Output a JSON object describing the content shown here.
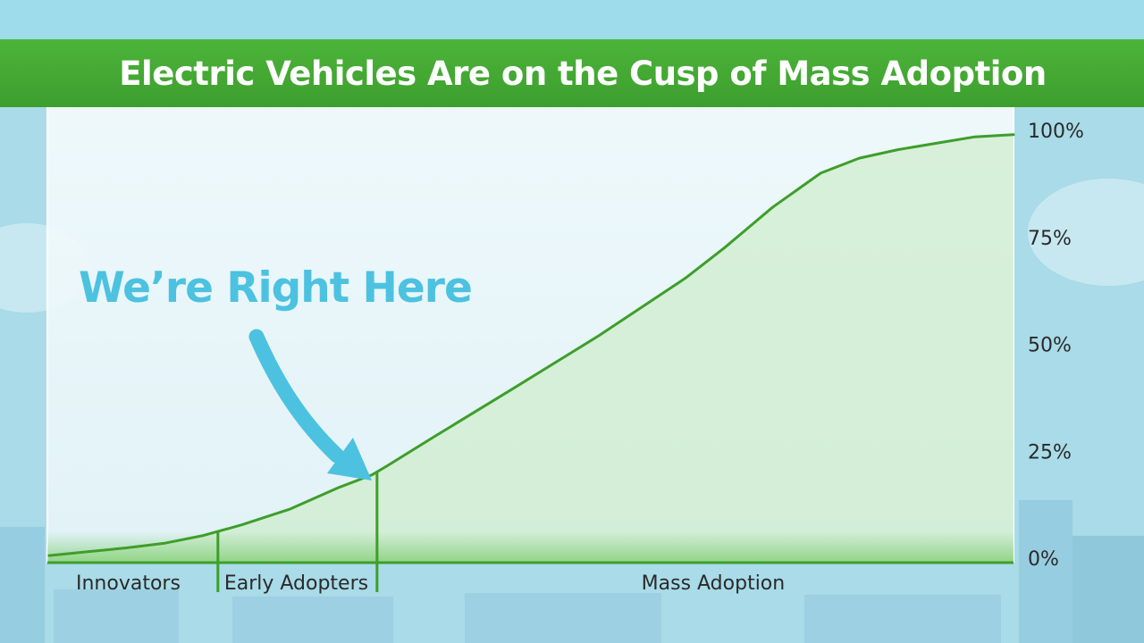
{
  "title": "Electric Vehicles Are on the Cusp of Mass Adoption",
  "callout": "We’re Right Here",
  "colors": {
    "title_bar": "#43a833",
    "curve": "#3e9e2a",
    "callout": "#4cc2e0",
    "sky": "#a9dbe8",
    "text": "#2a2a2a"
  },
  "icons": {
    "callout_arrow": "curved-arrow-icon"
  },
  "chart_data": {
    "type": "area",
    "title": "Electric Vehicles Are on the Cusp of Mass Adoption",
    "xlabel": "",
    "ylabel": "",
    "ylim": [
      0,
      100
    ],
    "y_ticks": [
      "0%",
      "25%",
      "50%",
      "75%",
      "100%"
    ],
    "y_tick_values": [
      0,
      25,
      50,
      75,
      100
    ],
    "y_axis_side": "right",
    "grid": false,
    "x": [
      0,
      4,
      8,
      12,
      16,
      20,
      25,
      30,
      33.5,
      35,
      40,
      48,
      57,
      66,
      70,
      75,
      80,
      84,
      88,
      92,
      96,
      100
    ],
    "y": [
      0.6,
      1.5,
      2.4,
      3.5,
      5.3,
      7.8,
      11.5,
      16.5,
      19.5,
      21.5,
      28.5,
      39.5,
      52,
      65.5,
      72.5,
      82,
      90,
      93.5,
      95.5,
      97,
      98.5,
      99
    ],
    "segments": [
      {
        "label": "Innovators",
        "start": 0,
        "end": 17.5
      },
      {
        "label": "Early Adopters",
        "start": 17.5,
        "end": 34
      },
      {
        "label": "Mass Adoption",
        "start": 34,
        "end": 100
      }
    ],
    "annotation": {
      "text": "We’re Right Here",
      "x": 34,
      "y": 17
    }
  }
}
